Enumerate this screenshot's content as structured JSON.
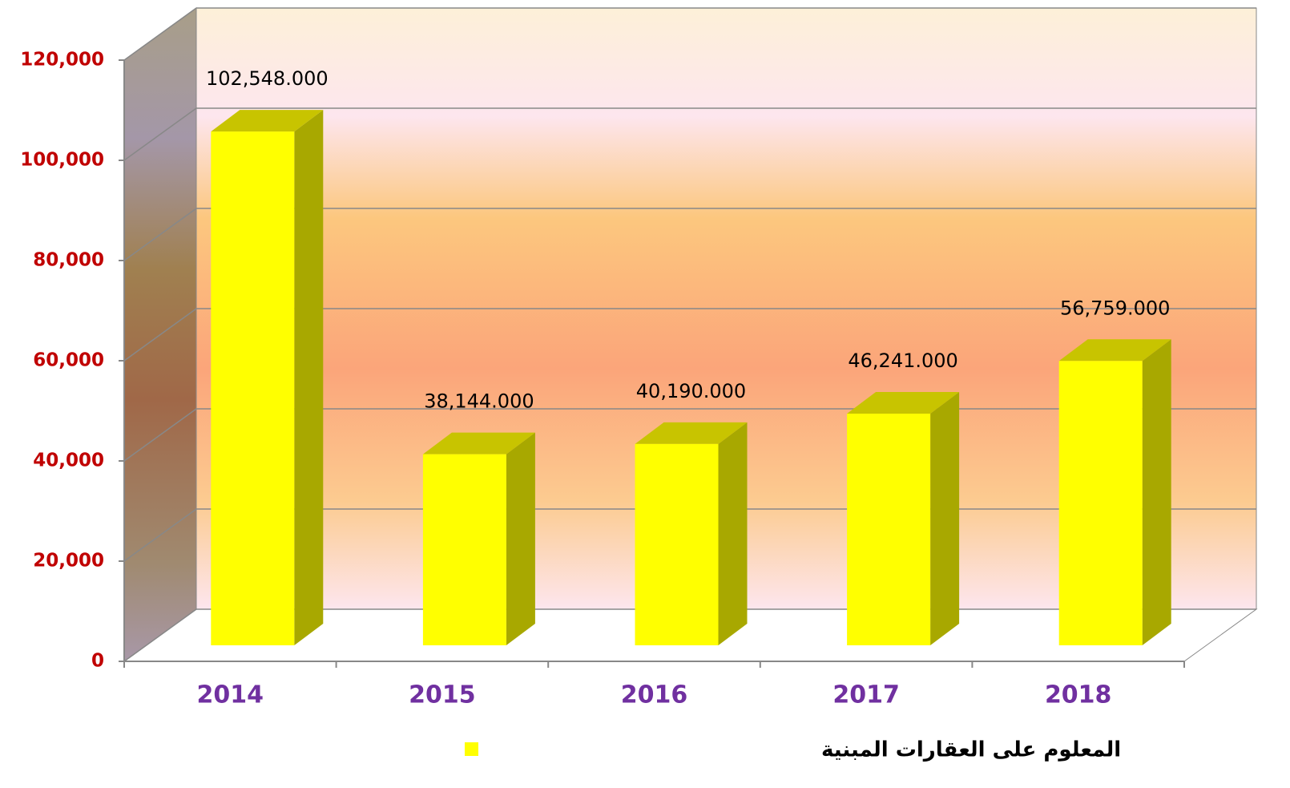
{
  "chart_data": {
    "type": "bar3d",
    "categories": [
      "2014",
      "2015",
      "2016",
      "2017",
      "2018"
    ],
    "series": [
      {
        "name": "المعلوم على العقارات المبنية",
        "color": "#ffff00",
        "values": [
          102548,
          38144,
          40190,
          46241,
          56759
        ],
        "value_labels": [
          "102,548.000",
          "38,144.000",
          "40,190.000",
          "46,241.000",
          "56,759.000"
        ]
      }
    ],
    "ylim": [
      0,
      120000
    ],
    "yticks": [
      0,
      {
        "value": 20000,
        "label": "20,000"
      },
      {
        "value": 40000,
        "label": "40,000"
      },
      {
        "value": 60000,
        "label": "60,000"
      },
      {
        "value": 80000,
        "label": "80,000"
      },
      {
        "value": 100000,
        "label": "100,000"
      },
      {
        "value": 120000,
        "label": "120,000"
      }
    ],
    "grid": true,
    "legend": "bottom"
  }
}
